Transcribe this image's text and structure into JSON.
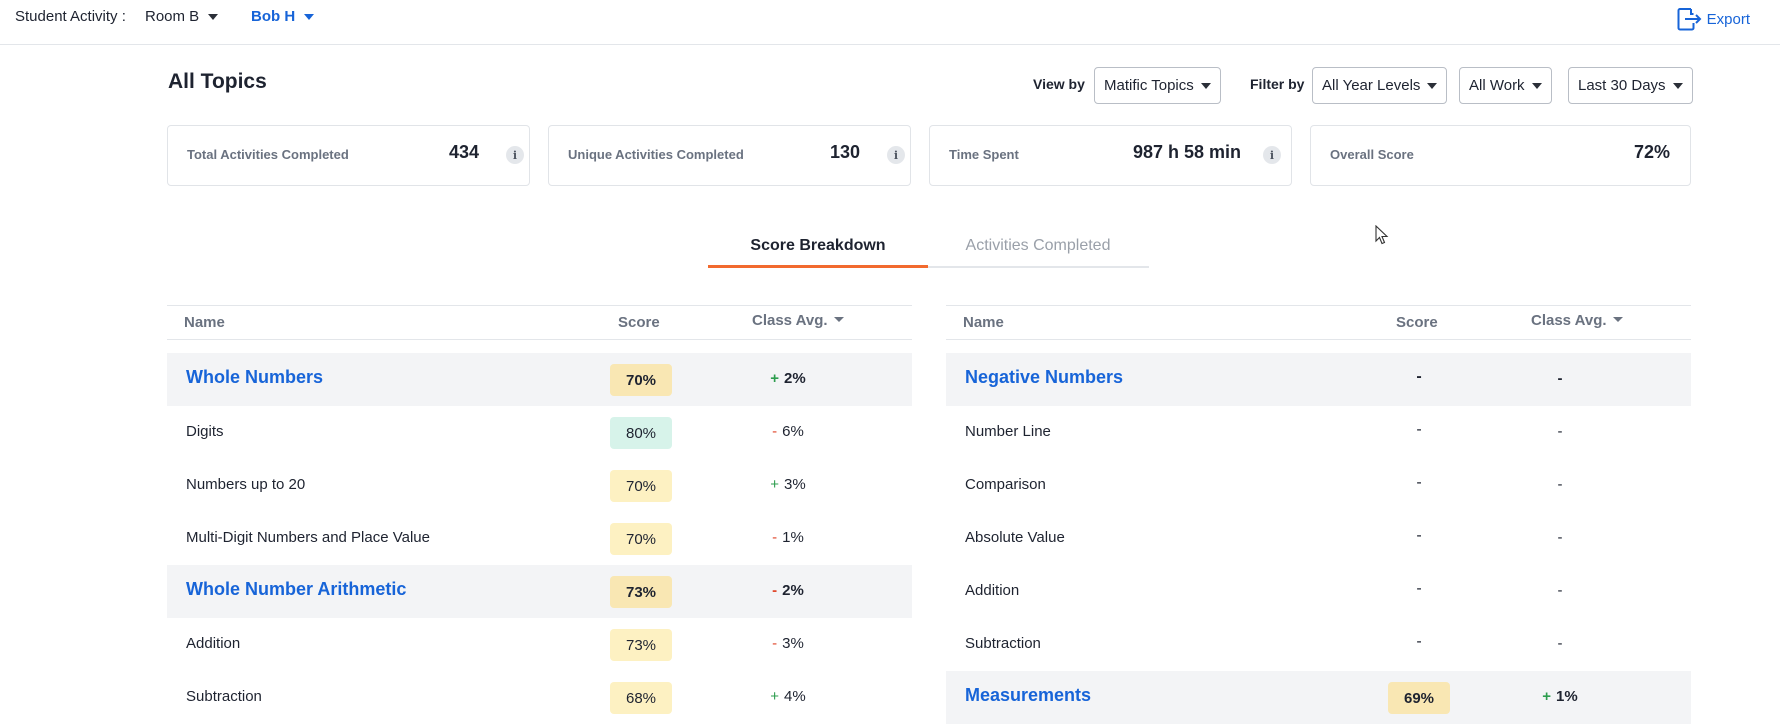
{
  "topbar": {
    "label": "Student Activity :",
    "room": "Room B",
    "student": "Bob H",
    "export_label": "Export"
  },
  "header": {
    "title": "All Topics",
    "view_by_label": "View by",
    "view_by_value": "Matific Topics",
    "filter_by_label": "Filter by",
    "filter_year": "All Year Levels",
    "filter_work": "All Work",
    "filter_period": "Last 30 Days"
  },
  "stats": [
    {
      "label": "Total Activities Completed",
      "value": "434"
    },
    {
      "label": "Unique Activities Completed",
      "value": "130"
    },
    {
      "label": "Time Spent",
      "value": "987 h 58 min"
    },
    {
      "label": "Overall Score",
      "value": "72%"
    }
  ],
  "tabs": [
    {
      "label": "Score Breakdown",
      "active": true
    },
    {
      "label": "Activities Completed",
      "active": false
    }
  ],
  "columns": {
    "name": "Name",
    "score": "Score",
    "class_avg": "Class Avg."
  },
  "left_rows": [
    {
      "name": "Whole Numbers",
      "topic": true,
      "score": "70%",
      "sign": "+",
      "avg": "2%"
    },
    {
      "name": "Digits",
      "topic": false,
      "score": "80%",
      "sign": "-",
      "avg": "6%"
    },
    {
      "name": "Numbers up to 20",
      "topic": false,
      "score": "70%",
      "sign": "+",
      "avg": "3%"
    },
    {
      "name": "Multi-Digit Numbers and Place Value",
      "topic": false,
      "score": "70%",
      "sign": "-",
      "avg": "1%"
    },
    {
      "name": "Whole Number Arithmetic",
      "topic": true,
      "score": "73%",
      "sign": "-",
      "avg": "2%"
    },
    {
      "name": "Addition",
      "topic": false,
      "score": "73%",
      "sign": "-",
      "avg": "3%"
    },
    {
      "name": "Subtraction",
      "topic": false,
      "score": "68%",
      "sign": "+",
      "avg": "4%"
    }
  ],
  "right_rows": [
    {
      "name": "Negative Numbers",
      "topic": true,
      "score": "-",
      "sign": "",
      "avg": "-"
    },
    {
      "name": "Number Line",
      "topic": false,
      "score": "-",
      "sign": "",
      "avg": "-"
    },
    {
      "name": "Comparison",
      "topic": false,
      "score": "-",
      "sign": "",
      "avg": "-"
    },
    {
      "name": "Absolute Value",
      "topic": false,
      "score": "-",
      "sign": "",
      "avg": "-"
    },
    {
      "name": "Addition",
      "topic": false,
      "score": "-",
      "sign": "",
      "avg": "-"
    },
    {
      "name": "Subtraction",
      "topic": false,
      "score": "-",
      "sign": "",
      "avg": "-"
    },
    {
      "name": "Measurements",
      "topic": true,
      "score": "69%",
      "sign": "+",
      "avg": "1%"
    }
  ],
  "colors": {
    "accent_blue": "#1764d8",
    "tab_underline": "#f26a2e",
    "plus_green": "#2d9d4e",
    "minus_red": "#e0482c",
    "score_yellow": "#fdf1c2",
    "score_green": "#d7f3ea"
  },
  "icons": [
    "chevron-down-icon",
    "export-icon",
    "info-icon",
    "cursor-icon"
  ]
}
